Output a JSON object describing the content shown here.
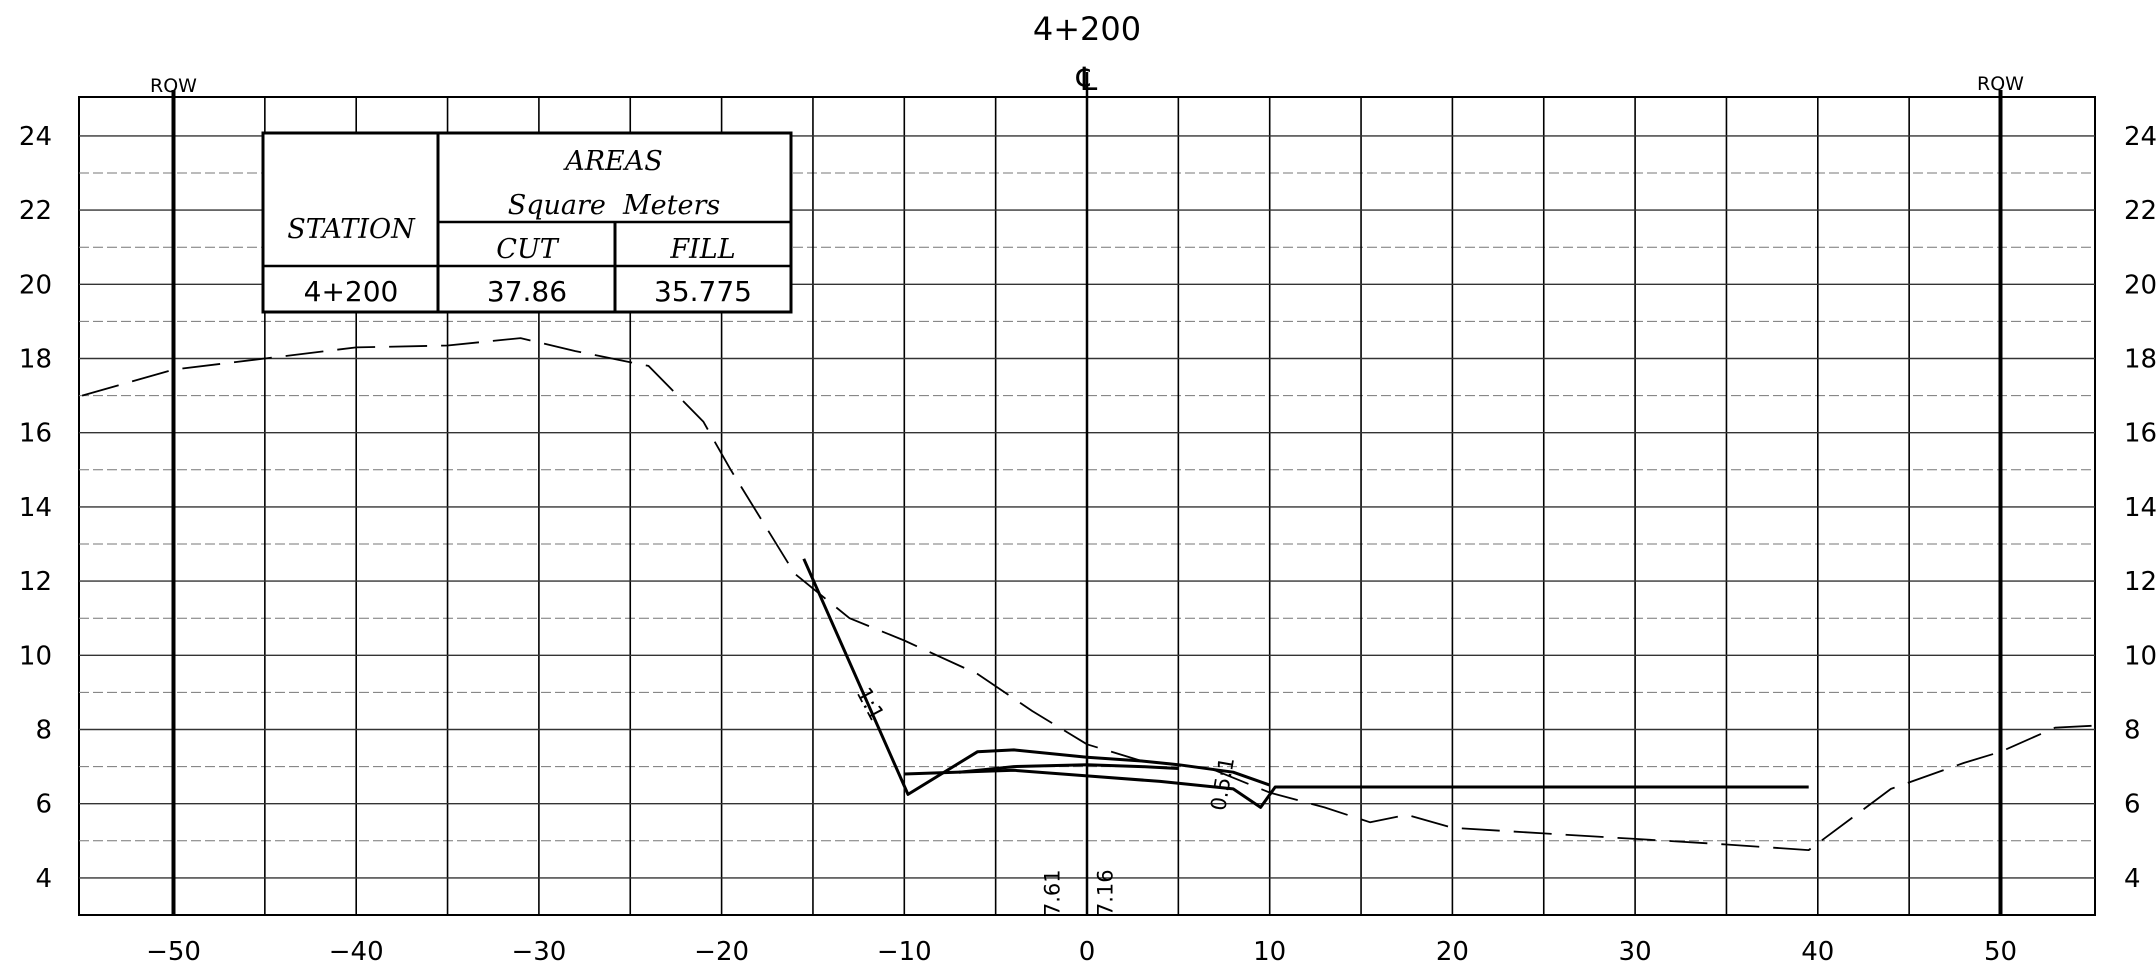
{
  "section": {
    "station_title": "4+200",
    "centerline_symbol": "℄",
    "row_left": "ROW",
    "row_right": "ROW",
    "row_left_offset": -50,
    "row_right_offset": 50
  },
  "areas_table": {
    "heading": "AREAS",
    "units": "Square  Meters",
    "station_header": "STATION",
    "cut_header": "CUT",
    "fill_header": "FILL",
    "station_value": "4+200",
    "cut_value": "37.86",
    "fill_value": "35.775"
  },
  "chart_data": {
    "type": "line",
    "x_range": [
      -55,
      55
    ],
    "y_range": [
      3,
      25
    ],
    "x_ticks": [
      "-50",
      "-40",
      "-30",
      "-20",
      "-10",
      "0",
      "10",
      "20",
      "30",
      "40",
      "50"
    ],
    "y_ticks": [
      "4",
      "6",
      "8",
      "10",
      "12",
      "14",
      "16",
      "18",
      "20",
      "22",
      "24"
    ],
    "grid": true,
    "series": [
      {
        "role": "existing ground (dashed)",
        "points": [
          [
            -55,
            17.0
          ],
          [
            -50,
            17.7
          ],
          [
            -45,
            18.0
          ],
          [
            -40,
            18.3
          ],
          [
            -35,
            18.35
          ],
          [
            -31,
            18.55
          ],
          [
            -28,
            18.2
          ],
          [
            -24,
            17.8
          ],
          [
            -21,
            16.3
          ],
          [
            -19.5,
            15.0
          ],
          [
            -16,
            12.2
          ],
          [
            -13,
            11.0
          ],
          [
            -10,
            10.4
          ],
          [
            -6,
            9.5
          ],
          [
            -3,
            8.5
          ],
          [
            0,
            7.6
          ],
          [
            3,
            7.15
          ],
          [
            5,
            7.05
          ],
          [
            7,
            6.9
          ],
          [
            10,
            6.3
          ],
          [
            13,
            5.9
          ],
          [
            15.5,
            5.5
          ],
          [
            17.5,
            5.7
          ],
          [
            20,
            5.35
          ],
          [
            25,
            5.2
          ],
          [
            30,
            5.05
          ],
          [
            35,
            4.9
          ],
          [
            39.5,
            4.75
          ],
          [
            44,
            6.4
          ],
          [
            48,
            7.1
          ],
          [
            50,
            7.4
          ],
          [
            53,
            8.05
          ],
          [
            55,
            8.1
          ]
        ]
      },
      {
        "role": "proposed left cut slope",
        "points": [
          [
            -15.5,
            12.6
          ],
          [
            -9.8,
            6.25
          ],
          [
            -6,
            7.4
          ],
          [
            -4,
            7.45
          ],
          [
            0,
            7.25
          ],
          [
            3,
            7.15
          ],
          [
            5,
            7.05
          ]
        ]
      },
      {
        "role": "proposed subgrade",
        "points": [
          [
            -10,
            6.8
          ],
          [
            -4,
            6.9
          ],
          [
            0,
            6.75
          ],
          [
            4,
            6.6
          ],
          [
            8,
            6.4
          ],
          [
            9.5,
            5.9
          ],
          [
            10.3,
            6.45
          ],
          [
            39.5,
            6.45
          ]
        ]
      },
      {
        "role": "proposed top",
        "points": [
          [
            -7,
            6.85
          ],
          [
            -4,
            7.0
          ],
          [
            0,
            7.05
          ],
          [
            3,
            7.0
          ],
          [
            5,
            6.95
          ]
        ]
      },
      {
        "role": "proposed right edge",
        "points": [
          [
            5,
            7.05
          ],
          [
            8,
            6.85
          ],
          [
            10,
            6.5
          ]
        ]
      }
    ],
    "annotations": [
      {
        "text": "1:1",
        "x": -12.2,
        "y": 8.6,
        "rotation": 62
      },
      {
        "text": "0.5:1",
        "x": 7.8,
        "y": 6.5,
        "rotation": -80
      },
      {
        "text": "7.61",
        "x": -1.5,
        "y": 3.6,
        "rotation": -90
      },
      {
        "text": "7.16",
        "x": 1.4,
        "y": 3.6,
        "rotation": -90
      }
    ]
  }
}
